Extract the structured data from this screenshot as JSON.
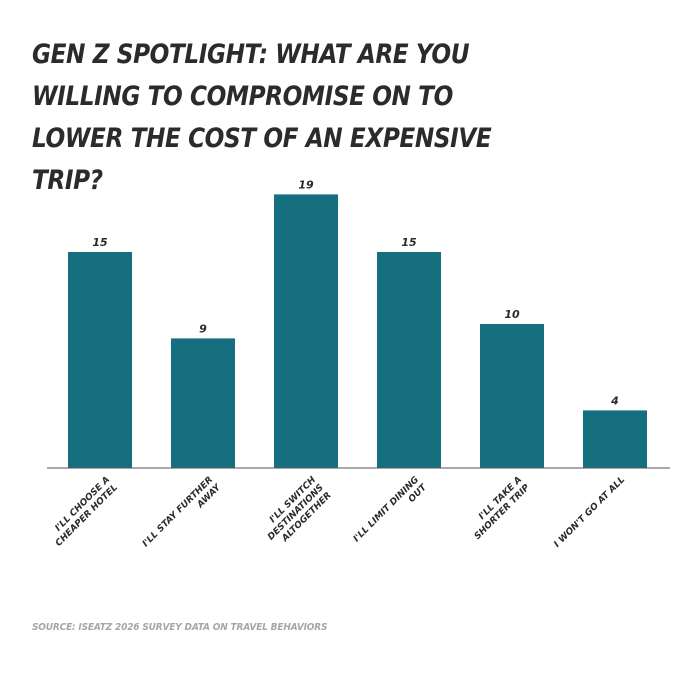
{
  "header": {
    "title": "GEN Z SPOTLIGHT: WHAT ARE YOU WILLING TO COMPROMISE ON TO LOWER THE COST OF AN EXPENSIVE TRIP?"
  },
  "footer": {
    "source": "SOURCE: ISEATZ 2026 SURVEY DATA ON TRAVEL BEHAVIORS"
  },
  "chart_data": {
    "type": "bar",
    "title": "GEN Z SPOTLIGHT: WHAT ARE YOU WILLING TO COMPROMISE ON TO LOWER THE COST OF AN EXPENSIVE TRIP?",
    "categories": [
      "I'LL CHOOSE A CHEAPER HOTEL",
      "I'LL STAY FURTHER AWAY",
      "I'LL SWITCH DESTINATIONS ALTOGETHER",
      "I'LL LIMIT DINING OUT",
      "I'LL TAKE A SHORTER TRIP",
      "I WON'T GO AT ALL"
    ],
    "values": [
      15,
      9,
      19,
      15,
      10,
      4
    ],
    "xlabel": "",
    "ylabel": "",
    "ylim": [
      0,
      19
    ],
    "grid": false,
    "legend": "none",
    "data_labels": true,
    "bar_color": "#156f7f",
    "axis_color": "#555555",
    "text_color": "#2b2b2b"
  }
}
